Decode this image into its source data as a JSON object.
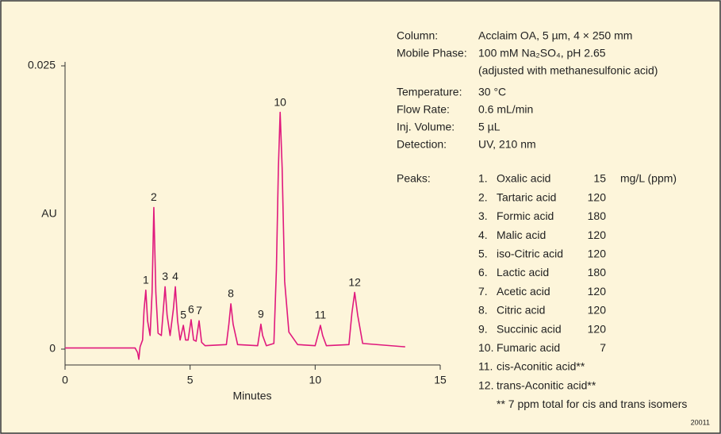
{
  "chart_data": {
    "type": "line",
    "x_label": "Minutes",
    "y_label": "AU",
    "xlim": [
      0,
      15
    ],
    "xticks": [
      0,
      5,
      10,
      15
    ],
    "ylim": [
      0,
      0.025
    ],
    "yticks": [
      0,
      0.025
    ],
    "x": [
      0,
      2.8,
      2.9,
      2.95,
      3.0,
      3.1,
      3.16,
      3.23,
      3.3,
      3.4,
      3.48,
      3.55,
      3.63,
      3.72,
      3.85,
      3.93,
      4.0,
      4.08,
      4.2,
      4.33,
      4.41,
      4.5,
      4.6,
      4.73,
      4.82,
      4.92,
      5.04,
      5.14,
      5.24,
      5.36,
      5.46,
      5.6,
      6.45,
      6.55,
      6.63,
      6.72,
      6.9,
      7.7,
      7.77,
      7.83,
      7.9,
      8.05,
      8.35,
      8.45,
      8.53,
      8.6,
      8.68,
      8.78,
      8.95,
      9.3,
      10.0,
      10.12,
      10.21,
      10.3,
      10.45,
      11.35,
      11.47,
      11.58,
      11.7,
      11.9,
      13.6
    ],
    "series": [
      {
        "color": "#e0197d",
        "values": [
          0.0001,
          0.0001,
          -0.0003,
          -0.0009,
          0.0002,
          0.0008,
          0.0035,
          0.0052,
          0.0025,
          0.0012,
          0.005,
          0.0125,
          0.005,
          0.0014,
          0.0012,
          0.0035,
          0.0055,
          0.003,
          0.0012,
          0.0035,
          0.0055,
          0.0025,
          0.0008,
          0.0021,
          0.0008,
          0.0008,
          0.0026,
          0.0008,
          0.0007,
          0.0025,
          0.0006,
          0.0003,
          0.0004,
          0.0022,
          0.004,
          0.0022,
          0.0004,
          0.0003,
          0.0013,
          0.0022,
          0.0012,
          0.0003,
          0.0005,
          0.007,
          0.016,
          0.0209,
          0.016,
          0.006,
          0.0015,
          0.0004,
          0.0003,
          0.0013,
          0.0021,
          0.0012,
          0.0003,
          0.0004,
          0.0032,
          0.005,
          0.003,
          0.0005,
          0.0002
        ]
      }
    ],
    "annotations": [
      {
        "text": "1",
        "x": 3.23,
        "y": 0.0052
      },
      {
        "text": "2",
        "x": 3.55,
        "y": 0.0125
      },
      {
        "text": "3",
        "x": 4.0,
        "y": 0.0055
      },
      {
        "text": "4",
        "x": 4.41,
        "y": 0.0055
      },
      {
        "text": "5",
        "x": 4.73,
        "y": 0.0021
      },
      {
        "text": "6",
        "x": 5.04,
        "y": 0.0026
      },
      {
        "text": "7",
        "x": 5.36,
        "y": 0.0025
      },
      {
        "text": "8",
        "x": 6.63,
        "y": 0.004
      },
      {
        "text": "9",
        "x": 7.83,
        "y": 0.0022
      },
      {
        "text": "10",
        "x": 8.6,
        "y": 0.0209
      },
      {
        "text": "11",
        "x": 10.21,
        "y": 0.0021
      },
      {
        "text": "12",
        "x": 11.58,
        "y": 0.005
      }
    ]
  },
  "conditions": [
    {
      "label": "Column:",
      "value": [
        "Acclaim OA, 5 µm, 4 × 250 mm"
      ]
    },
    {
      "label": "Mobile Phase:",
      "value": [
        "100 mM Na₂SO₄, pH 2.65",
        "(adjusted with methanesulfonic acid)"
      ]
    },
    {
      "label": "Temperature:",
      "value": [
        "30 °C"
      ]
    },
    {
      "label": "Flow Rate:",
      "value": [
        "0.6 mL/min"
      ]
    },
    {
      "label": "Inj. Volume:",
      "value": [
        "5 µL"
      ]
    },
    {
      "label": "Detection:",
      "value": [
        "UV, 210 nm"
      ]
    }
  ],
  "peaks_label": "Peaks:",
  "peaks_unit": "mg/L (ppm)",
  "peaks": [
    {
      "num": "1.",
      "name": "Oxalic acid",
      "conc": "15"
    },
    {
      "num": "2.",
      "name": "Tartaric acid",
      "conc": "120"
    },
    {
      "num": "3.",
      "name": "Formic acid",
      "conc": "180"
    },
    {
      "num": "4.",
      "name": "Malic acid",
      "conc": "120"
    },
    {
      "num": "5.",
      "name": "iso-Citric acid",
      "conc": "120"
    },
    {
      "num": "6.",
      "name": "Lactic acid",
      "conc": "180"
    },
    {
      "num": "7.",
      "name": "Acetic acid",
      "conc": "120"
    },
    {
      "num": "8.",
      "name": "Citric acid",
      "conc": "120"
    },
    {
      "num": "9.",
      "name": "Succinic acid",
      "conc": "120"
    },
    {
      "num": "10.",
      "name": "Fumaric acid",
      "conc": "7"
    },
    {
      "num": "11.",
      "name": "cis-Aconitic acid**"
    },
    {
      "num": "12.",
      "name": "trans-Aconitic acid**"
    }
  ],
  "footnote": "** 7 ppm total for cis and trans isomers",
  "code": "20011"
}
